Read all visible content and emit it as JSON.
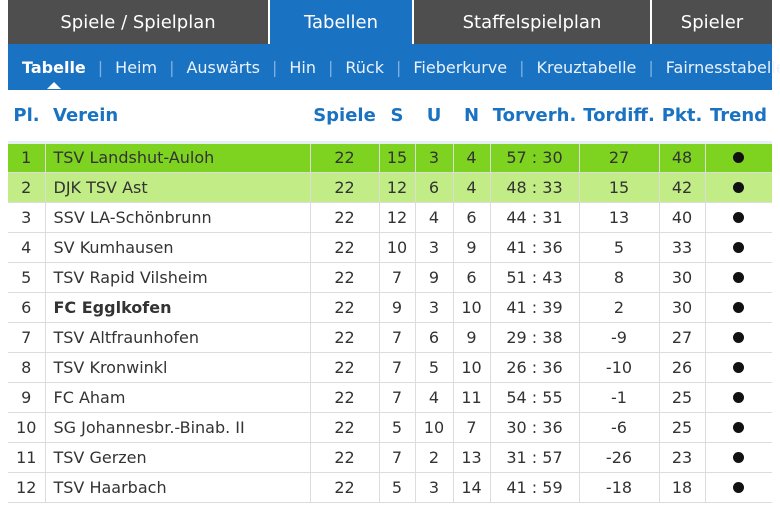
{
  "top_tabs": [
    {
      "label": "Spiele / Spielplan",
      "active": false
    },
    {
      "label": "Tabellen",
      "active": true
    },
    {
      "label": "Staffelspielplan",
      "active": false
    },
    {
      "label": "Spieler",
      "active": false
    }
  ],
  "sub_nav": [
    {
      "label": "Tabelle",
      "active": true
    },
    {
      "label": "Heim",
      "active": false
    },
    {
      "label": "Auswärts",
      "active": false
    },
    {
      "label": "Hin",
      "active": false
    },
    {
      "label": "Rück",
      "active": false
    },
    {
      "label": "Fieberkurve",
      "active": false
    },
    {
      "label": "Kreuztabelle",
      "active": false
    },
    {
      "label": "Fairnesstabelle",
      "active": false
    }
  ],
  "table": {
    "headers": {
      "pl": "Pl.",
      "verein": "Verein",
      "spiele": "Spiele",
      "s": "S",
      "u": "U",
      "n": "N",
      "torverh": "Torverh.",
      "tordiff": "Tordiff.",
      "pkt": "Pkt.",
      "trend": "Trend"
    },
    "rows": [
      {
        "pl": "1",
        "verein": "TSV Landshut-Auloh",
        "spiele": "22",
        "s": "15",
        "u": "3",
        "n": "4",
        "torverh": "57 : 30",
        "tordiff": "27",
        "pkt": "48"
      },
      {
        "pl": "2",
        "verein": "DJK TSV Ast",
        "spiele": "22",
        "s": "12",
        "u": "6",
        "n": "4",
        "torverh": "48 : 33",
        "tordiff": "15",
        "pkt": "42"
      },
      {
        "pl": "3",
        "verein": "SSV LA-Schönbrunn",
        "spiele": "22",
        "s": "12",
        "u": "4",
        "n": "6",
        "torverh": "44 : 31",
        "tordiff": "13",
        "pkt": "40"
      },
      {
        "pl": "4",
        "verein": "SV Kumhausen",
        "spiele": "22",
        "s": "10",
        "u": "3",
        "n": "9",
        "torverh": "41 : 36",
        "tordiff": "5",
        "pkt": "33"
      },
      {
        "pl": "5",
        "verein": "TSV Rapid Vilsheim",
        "spiele": "22",
        "s": "7",
        "u": "9",
        "n": "6",
        "torverh": "51 : 43",
        "tordiff": "8",
        "pkt": "30"
      },
      {
        "pl": "6",
        "verein": "FC Egglkofen",
        "spiele": "22",
        "s": "9",
        "u": "3",
        "n": "10",
        "torverh": "41 : 39",
        "tordiff": "2",
        "pkt": "30"
      },
      {
        "pl": "7",
        "verein": "TSV Altfraunhofen",
        "spiele": "22",
        "s": "7",
        "u": "6",
        "n": "9",
        "torverh": "29 : 38",
        "tordiff": "-9",
        "pkt": "27"
      },
      {
        "pl": "8",
        "verein": "TSV Kronwinkl",
        "spiele": "22",
        "s": "7",
        "u": "5",
        "n": "10",
        "torverh": "26 : 36",
        "tordiff": "-10",
        "pkt": "26"
      },
      {
        "pl": "9",
        "verein": "FC Aham",
        "spiele": "22",
        "s": "7",
        "u": "4",
        "n": "11",
        "torverh": "54 : 55",
        "tordiff": "-1",
        "pkt": "25"
      },
      {
        "pl": "10",
        "verein": "SG Johannesbr.-Binab. II",
        "spiele": "22",
        "s": "5",
        "u": "10",
        "n": "7",
        "torverh": "30 : 36",
        "tordiff": "-6",
        "pkt": "25"
      },
      {
        "pl": "11",
        "verein": "TSV Gerzen",
        "spiele": "22",
        "s": "7",
        "u": "2",
        "n": "13",
        "torverh": "31 : 57",
        "tordiff": "-26",
        "pkt": "23"
      },
      {
        "pl": "12",
        "verein": "TSV Haarbach",
        "spiele": "22",
        "s": "5",
        "u": "3",
        "n": "14",
        "torverh": "41 : 59",
        "tordiff": "-18",
        "pkt": "18"
      }
    ]
  }
}
